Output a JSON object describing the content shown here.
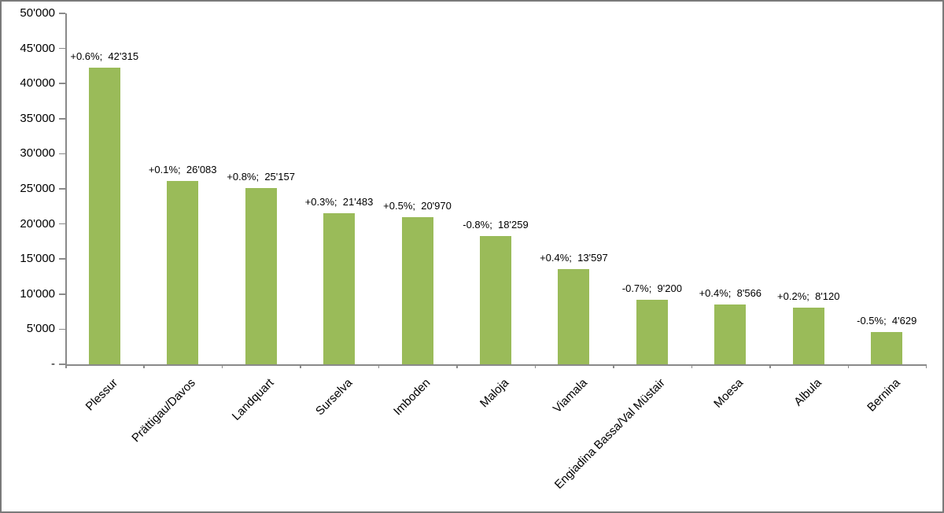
{
  "chart_data": {
    "type": "bar",
    "title": "",
    "xlabel": "",
    "ylabel": "",
    "categories": [
      "Plessur",
      "Prättigau/Davos",
      "Landquart",
      "Surselva",
      "Imboden",
      "Maloja",
      "Viamala",
      "Engiadina Bassa/Val Müstair",
      "Moesa",
      "Albula",
      "Bernina"
    ],
    "values": [
      42315,
      26083,
      25157,
      21483,
      20970,
      18259,
      13597,
      9200,
      8566,
      8120,
      4629
    ],
    "growth_percent": [
      "+0.6%",
      "+0.1%",
      "+0.8%",
      "+0.3%",
      "+0.5%",
      "-0.8%",
      "+0.4%",
      "-0.7%",
      "+0.4%",
      "+0.2%",
      "-0.5%"
    ],
    "data_labels": [
      "+0.6%;  42'315",
      "+0.1%;  26'083",
      "+0.8%;  25'157",
      "+0.3%;  21'483",
      "+0.5%;  20'970",
      "-0.8%;  18'259",
      "+0.4%;  13'597",
      "-0.7%;  9'200",
      "+0.4%;  8'566",
      "+0.2%;  8'120",
      "-0.5%;  4'629"
    ],
    "ylim": [
      0,
      50000
    ],
    "ytick_step": 5000,
    "ytick_labels_top_to_bottom": [
      "50'000",
      "45'000",
      "40'000",
      "35'000",
      "30'000",
      "25'000",
      "20'000",
      "15'000",
      "10'000",
      "5'000",
      "-"
    ],
    "grid": false,
    "legend": null,
    "bar_color": "#9ABB59",
    "axis_color": "#8A8A8A",
    "text_color": "#000000"
  }
}
